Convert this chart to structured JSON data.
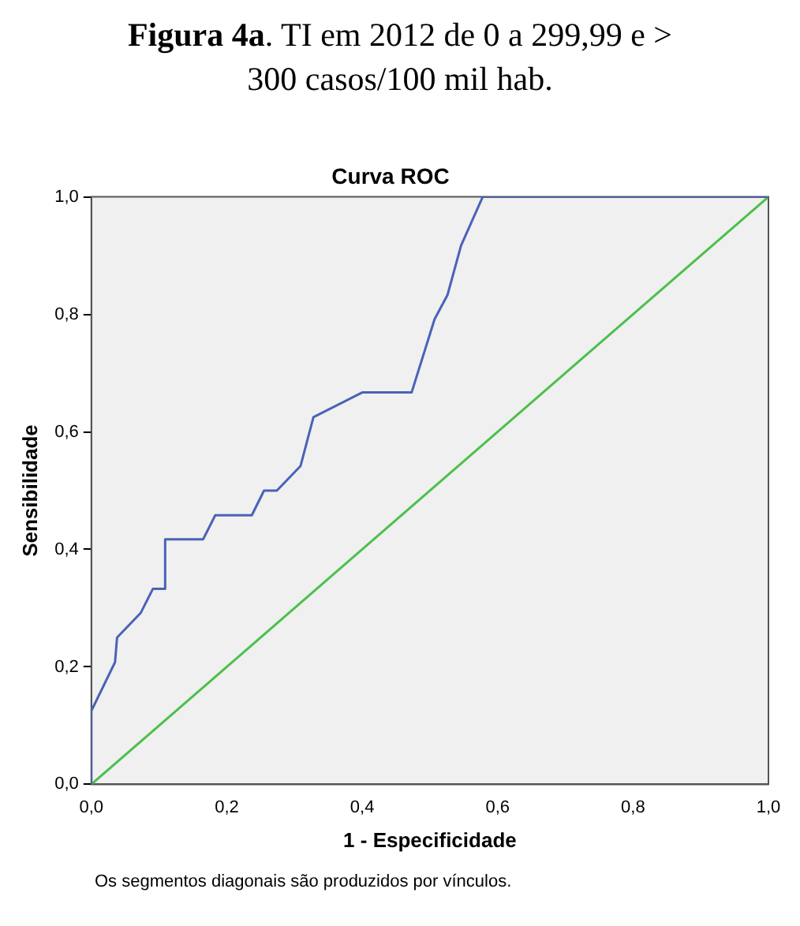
{
  "chart_data": {
    "type": "line",
    "title": "Figura 4a. TI em 2012 de 0 a 299,99 e > 300 casos/100 mil hab.",
    "subtitle": "Curva ROC",
    "xlabel": "1 - Especificidade",
    "ylabel": "Sensibilidade",
    "series": [
      {
        "color": "#4a62b8",
        "x": [
          0,
          0,
          0.035,
          0.038,
          0.073,
          0.091,
          0.109,
          0.109,
          0.165,
          0.183,
          0.237,
          0.255,
          0.274,
          0.309,
          0.328,
          0.4,
          0.473,
          0.507,
          0.526,
          0.546,
          0.578,
          1
        ],
        "values": [
          0,
          0.125,
          0.208,
          0.25,
          0.292,
          0.333,
          0.333,
          0.417,
          0.417,
          0.458,
          0.458,
          0.5,
          0.5,
          0.542,
          0.625,
          0.667,
          0.667,
          0.792,
          0.833,
          0.917,
          1,
          1
        ]
      },
      {
        "color": "#4cc04c",
        "x": [
          0,
          1
        ],
        "values": [
          0,
          1
        ]
      }
    ],
    "xlim": [
      0,
      1
    ],
    "ylim": [
      0,
      1
    ],
    "xticks": [
      {
        "value": 0,
        "label": "0,0"
      },
      {
        "value": 0.2,
        "label": "0,2"
      },
      {
        "value": 0.4,
        "label": "0,4"
      },
      {
        "value": 0.6,
        "label": "0,6"
      },
      {
        "value": 0.8,
        "label": "0,8"
      },
      {
        "value": 1,
        "label": "1,0"
      }
    ],
    "yticks": [
      {
        "value": 0,
        "label": "0,0"
      },
      {
        "value": 0.2,
        "label": "0,2"
      },
      {
        "value": 0.4,
        "label": "0,4"
      },
      {
        "value": 0.6,
        "label": "0,6"
      },
      {
        "value": 0.8,
        "label": "0,8"
      },
      {
        "value": 1,
        "label": "1,0"
      }
    ],
    "grid": false,
    "legend": false,
    "marker": "none",
    "line_style": "solid",
    "annotations": [
      "Os segmentos diagonais são produzidos por vínculos."
    ]
  }
}
